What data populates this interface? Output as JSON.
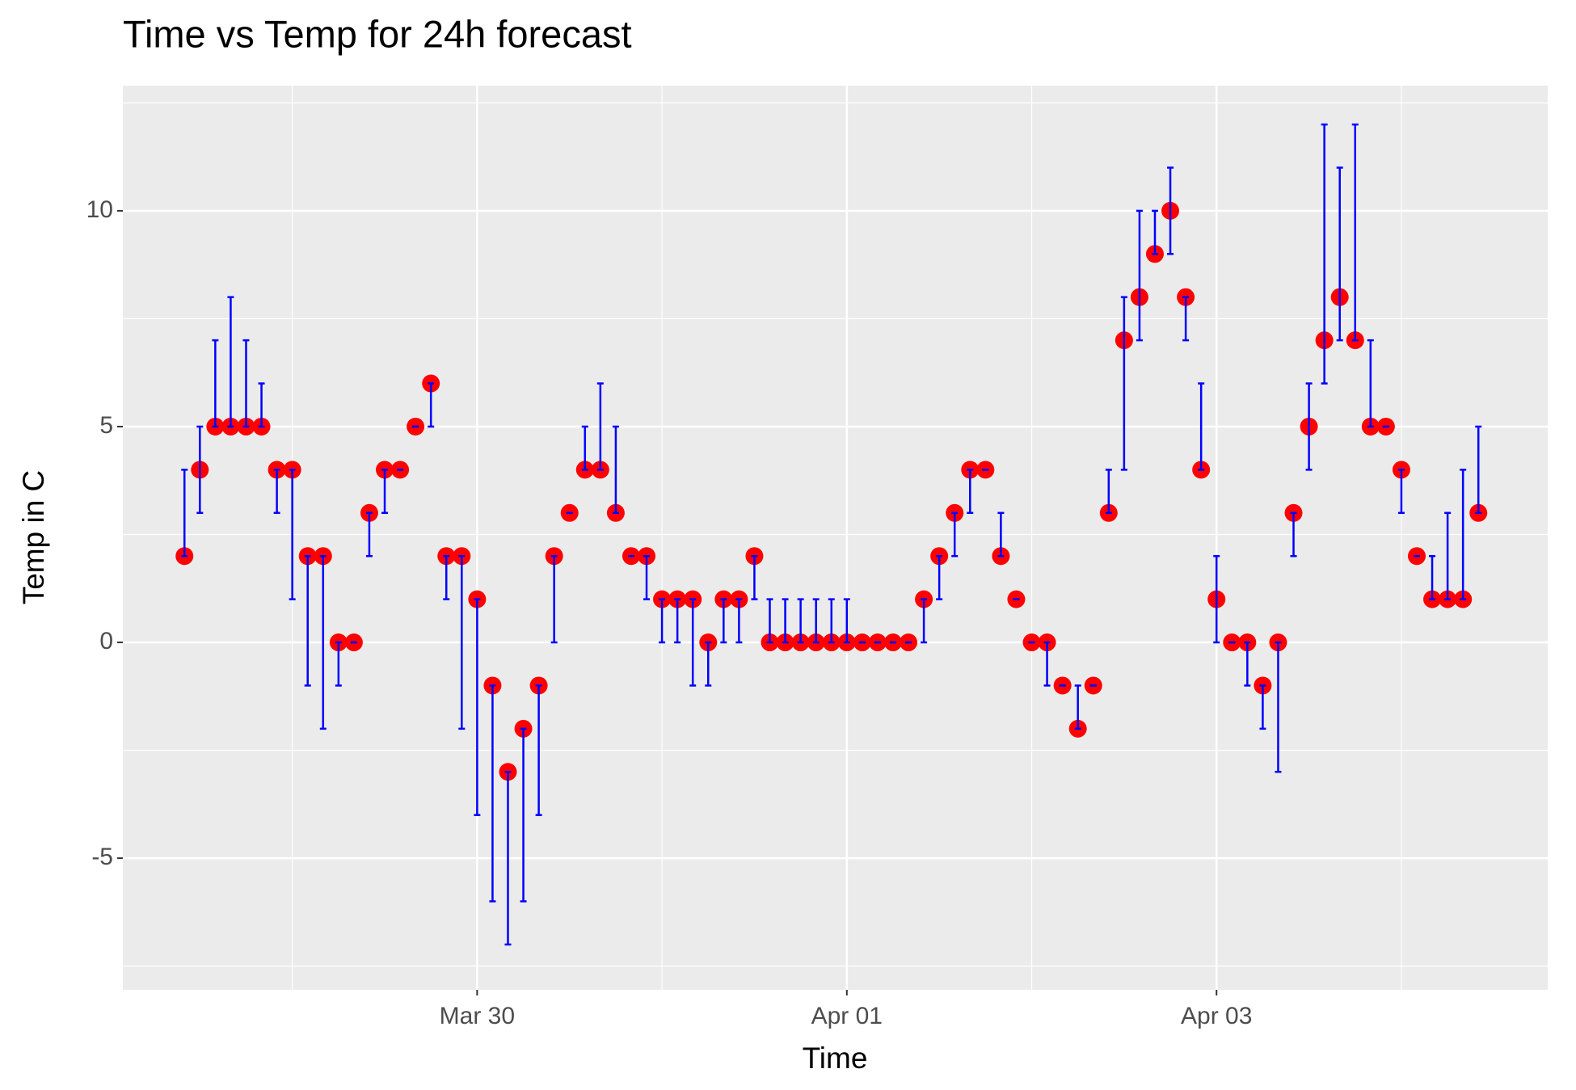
{
  "chart_data": {
    "type": "errorbar-scatter",
    "title": "Time vs Temp for 24h forecast",
    "x_label": "Time",
    "y_label": "Temp in C",
    "x": [
      "Mar 28 10:00",
      "Mar 28 12:00",
      "Mar 28 14:00",
      "Mar 28 16:00",
      "Mar 28 18:00",
      "Mar 28 20:00",
      "Mar 28 22:00",
      "Mar 29 00:00",
      "Mar 29 02:00",
      "Mar 29 04:00",
      "Mar 29 06:00",
      "Mar 29 08:00",
      "Mar 29 10:00",
      "Mar 29 12:00",
      "Mar 29 14:00",
      "Mar 29 16:00",
      "Mar 29 18:00",
      "Mar 29 20:00",
      "Mar 29 22:00",
      "Mar 30 00:00",
      "Mar 30 02:00",
      "Mar 30 04:00",
      "Mar 30 06:00",
      "Mar 30 08:00",
      "Mar 30 10:00",
      "Mar 30 12:00",
      "Mar 30 14:00",
      "Mar 30 16:00",
      "Mar 30 18:00",
      "Mar 30 20:00",
      "Mar 30 22:00",
      "Mar 31 00:00",
      "Mar 31 02:00",
      "Mar 31 04:00",
      "Mar 31 06:00",
      "Mar 31 08:00",
      "Mar 31 10:00",
      "Mar 31 12:00",
      "Mar 31 14:00",
      "Mar 31 16:00",
      "Mar 31 18:00",
      "Mar 31 20:00",
      "Mar 31 22:00",
      "Apr 01 00:00",
      "Apr 01 02:00",
      "Apr 01 04:00",
      "Apr 01 06:00",
      "Apr 01 08:00",
      "Apr 01 10:00",
      "Apr 01 12:00",
      "Apr 01 14:00",
      "Apr 01 16:00",
      "Apr 01 18:00",
      "Apr 01 20:00",
      "Apr 01 22:00",
      "Apr 02 00:00",
      "Apr 02 02:00",
      "Apr 02 04:00",
      "Apr 02 06:00",
      "Apr 02 08:00",
      "Apr 02 10:00",
      "Apr 02 12:00",
      "Apr 02 14:00",
      "Apr 02 16:00",
      "Apr 02 18:00",
      "Apr 02 20:00",
      "Apr 02 22:00",
      "Apr 03 00:00",
      "Apr 03 02:00",
      "Apr 03 04:00",
      "Apr 03 06:00",
      "Apr 03 08:00",
      "Apr 03 10:00",
      "Apr 03 12:00",
      "Apr 03 14:00",
      "Apr 03 16:00",
      "Apr 03 18:00",
      "Apr 03 20:00",
      "Apr 03 22:00",
      "Apr 04 00:00",
      "Apr 04 02:00",
      "Apr 04 04:00",
      "Apr 04 06:00",
      "Apr 04 08:00",
      "Apr 04 10:00"
    ],
    "values": [
      2,
      4,
      5,
      5,
      5,
      5,
      4,
      4,
      2,
      2,
      0,
      0,
      3,
      4,
      4,
      5,
      6,
      2,
      2,
      1,
      -1,
      -3,
      -2,
      -1,
      2,
      3,
      4,
      4,
      3,
      2,
      2,
      1,
      1,
      1,
      0,
      1,
      1,
      2,
      0,
      0,
      0,
      0,
      0,
      0,
      0,
      0,
      0,
      0,
      1,
      2,
      3,
      4,
      4,
      2,
      1,
      0,
      0,
      -1,
      -2,
      -1,
      3,
      7,
      8,
      9,
      10,
      8,
      4,
      1,
      0,
      0,
      -1,
      0,
      3,
      5,
      7,
      8,
      7,
      5,
      5,
      4,
      2,
      1,
      1,
      1,
      3
    ],
    "ymin": [
      2,
      3,
      5,
      5,
      5,
      5,
      3,
      1,
      -1,
      -2,
      -1,
      0,
      2,
      3,
      4,
      5,
      5,
      1,
      -2,
      -4,
      -6,
      -7,
      -6,
      -4,
      0,
      3,
      4,
      4,
      3,
      2,
      1,
      0,
      0,
      -1,
      -1,
      0,
      0,
      1,
      0,
      0,
      0,
      0,
      0,
      0,
      0,
      0,
      0,
      0,
      0,
      1,
      2,
      3,
      4,
      2,
      1,
      0,
      -1,
      -1,
      -2,
      -1,
      3,
      4,
      7,
      9,
      9,
      7,
      4,
      0,
      0,
      -1,
      -2,
      -3,
      2,
      4,
      6,
      7,
      7,
      5,
      5,
      3,
      2,
      1,
      1,
      1,
      3
    ],
    "ymax": [
      4,
      5,
      7,
      8,
      7,
      6,
      4,
      4,
      2,
      2,
      0,
      0,
      3,
      4,
      4,
      5,
      6,
      2,
      2,
      1,
      -1,
      -3,
      -2,
      -1,
      2,
      3,
      5,
      6,
      5,
      2,
      2,
      1,
      1,
      1,
      0,
      1,
      1,
      2,
      1,
      1,
      1,
      1,
      1,
      1,
      0,
      0,
      0,
      0,
      1,
      2,
      3,
      4,
      4,
      3,
      1,
      0,
      0,
      -1,
      -1,
      -1,
      4,
      8,
      10,
      10,
      11,
      8,
      6,
      2,
      0,
      0,
      -1,
      0,
      3,
      6,
      12,
      11,
      12,
      7,
      5,
      4,
      2,
      2,
      3,
      4,
      5
    ],
    "point_color": "red",
    "errorbar_color": "blue",
    "xlim": [
      "Mar 28 02:00",
      "Apr 04 19:00"
    ],
    "xticks": [
      {
        "value": "Mar 30 00:00",
        "label": "Mar 30"
      },
      {
        "value": "Apr 01 00:00",
        "label": "Apr 01"
      },
      {
        "value": "Apr 03 00:00",
        "label": "Apr 03"
      }
    ],
    "ylim": [
      -8.05,
      12.9
    ],
    "yticks": [
      -5,
      0,
      5,
      10
    ],
    "grid": true
  }
}
